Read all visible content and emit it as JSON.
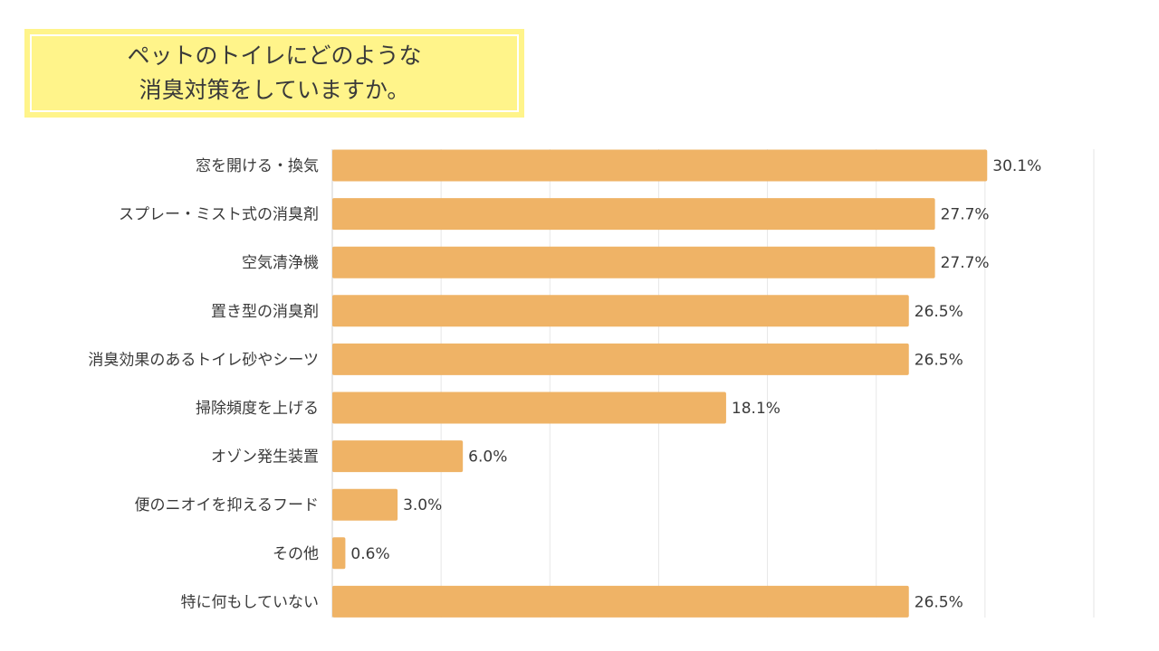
{
  "chart_data": {
    "type": "bar",
    "orientation": "horizontal",
    "title": "ペットのトイレにどのような\n消臭対策をしていますか。",
    "categories": [
      "窓を開ける・換気",
      "スプレー・ミスト式の消臭剤",
      "空気清浄機",
      "置き型の消臭剤",
      "消臭効果のあるトイレ砂やシーツ",
      "掃除頻度を上げる",
      "オゾン発生装置",
      "便のニオイを抑えるフード",
      "その他",
      "特に何もしていない"
    ],
    "values": [
      30.1,
      27.7,
      27.7,
      26.5,
      26.5,
      18.1,
      6.0,
      3.0,
      0.6,
      26.5
    ],
    "value_labels": [
      "30.1%",
      "27.7%",
      "27.7%",
      "26.5%",
      "26.5%",
      "18.1%",
      "6.0%",
      "3.0%",
      "0.6%",
      "26.5%"
    ],
    "xlim": [
      0,
      35
    ],
    "grid": true,
    "bar_color": "#efb366",
    "grid_color": "#e6e6e6",
    "title_bg_color": "#fff48a"
  }
}
